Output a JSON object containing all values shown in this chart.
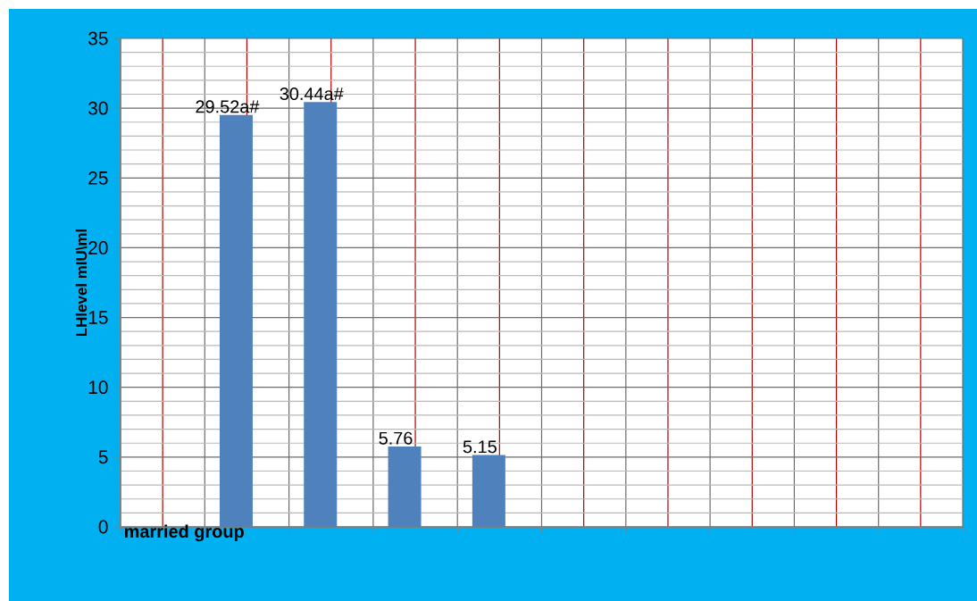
{
  "chart_data": {
    "type": "bar",
    "categories": [
      "**married group**",
      null,
      null,
      null,
      null,
      null,
      null,
      null,
      null,
      null
    ],
    "values": [
      null,
      29.52,
      30.44,
      5.76,
      5.15,
      null,
      null,
      null,
      null,
      null
    ],
    "value_labels": [
      null,
      "29.52a#",
      "30.44a#",
      "5.76",
      "5.15",
      null,
      null,
      null,
      null,
      null
    ],
    "color": "#4f81bd",
    "ylabel": "LHlevel mIU\\ml",
    "ylim": [
      0,
      35
    ],
    "yticks": [
      0,
      5,
      10,
      15,
      20,
      25,
      30,
      35
    ],
    "grid": true
  }
}
